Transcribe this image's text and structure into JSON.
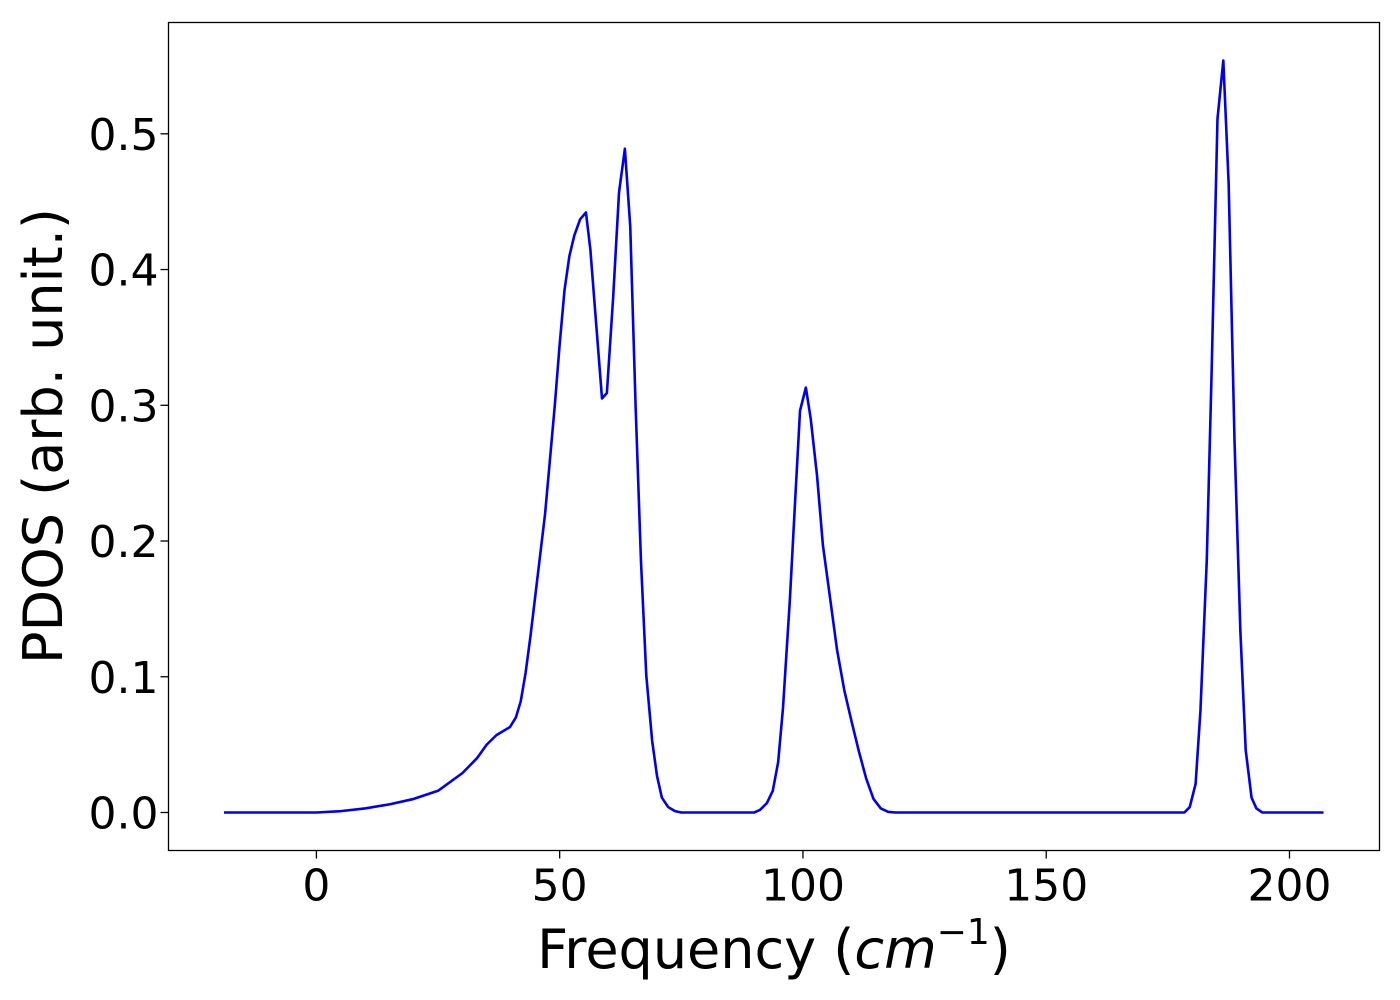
{
  "chart_data": {
    "type": "line",
    "xlabel_parts": [
      "Frequency (",
      "cm",
      "−1",
      ")"
    ],
    "ylabel": "PDOS (arb. unit.)",
    "xlim": [
      -30.4,
      218.5
    ],
    "ylim": [
      -0.028,
      0.582
    ],
    "xticks": [
      0,
      50,
      100,
      150,
      200
    ],
    "yticks": [
      {
        "value": 0,
        "label": "0.0"
      },
      0.1,
      0.2,
      0.3,
      0.4,
      0.5
    ],
    "grid": false,
    "series": [
      {
        "name": "PDOS",
        "color": "#0000ee",
        "x": [
          -19,
          -10,
          0,
          5,
          10,
          15,
          20,
          25,
          30,
          33,
          35,
          37,
          39.8,
          41,
          42,
          43,
          44,
          45,
          47,
          48,
          49,
          50,
          51,
          52,
          53,
          54.2,
          55.4,
          56.3,
          57.5,
          58.7,
          59.7,
          61,
          62.2,
          63.4,
          64.5,
          65.6,
          66.7,
          67.8,
          69,
          70,
          71,
          72.3,
          73.7,
          75,
          80,
          90,
          91.2,
          92.6,
          93.8,
          94.9,
          95.9,
          97.3,
          98.4,
          99.4,
          100.6,
          101.6,
          102.9,
          104.1,
          105.5,
          107,
          108.5,
          110,
          111.5,
          113,
          114.5,
          116,
          117.5,
          119,
          150,
          178.4,
          179.5,
          180.7,
          181.7,
          183,
          184,
          185.2,
          186.4,
          187.5,
          188.7,
          189.9,
          191,
          192.2,
          193.2,
          194.4,
          200,
          207
        ],
        "values": [
          0,
          0,
          0,
          0.001,
          0.003,
          0.006,
          0.01,
          0.016,
          0.029,
          0.04,
          0.05,
          0.057,
          0.063,
          0.07,
          0.082,
          0.103,
          0.13,
          0.16,
          0.22,
          0.26,
          0.3,
          0.345,
          0.385,
          0.41,
          0.425,
          0.437,
          0.442,
          0.415,
          0.36,
          0.305,
          0.309,
          0.38,
          0.457,
          0.489,
          0.432,
          0.3,
          0.186,
          0.101,
          0.053,
          0.027,
          0.011,
          0.004,
          0.001,
          0,
          0,
          0,
          0.002,
          0.007,
          0.016,
          0.037,
          0.077,
          0.156,
          0.23,
          0.296,
          0.313,
          0.29,
          0.248,
          0.197,
          0.16,
          0.12,
          0.09,
          0.067,
          0.045,
          0.025,
          0.01,
          0.003,
          0.0005,
          0,
          0,
          0,
          0.004,
          0.021,
          0.075,
          0.186,
          0.325,
          0.511,
          0.554,
          0.463,
          0.274,
          0.134,
          0.046,
          0.011,
          0.003,
          0,
          0,
          0
        ]
      }
    ]
  }
}
